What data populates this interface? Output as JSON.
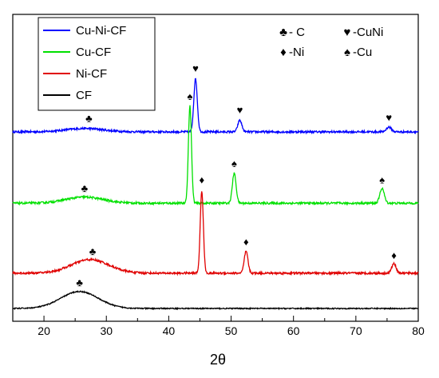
{
  "chart_data": {
    "type": "line",
    "title": "",
    "xlabel": "2θ",
    "ylabel": "",
    "xlim": [
      15,
      80
    ],
    "xticks": [
      "20",
      "30",
      "40",
      "50",
      "60",
      "70",
      "80"
    ],
    "grid": false,
    "legend_position": "top-left",
    "series": [
      {
        "name": "Cu-Ni-CF",
        "color": "#0000ff",
        "offset": 2.6,
        "noise": 0.015,
        "broad": [
          {
            "x": 26.5,
            "h": 0.05,
            "w": 3.0
          }
        ],
        "peaks": [
          {
            "x": 44.3,
            "h": 0.78,
            "w": 0.28
          },
          {
            "x": 51.4,
            "h": 0.17,
            "w": 0.32
          },
          {
            "x": 75.3,
            "h": 0.07,
            "w": 0.4
          }
        ]
      },
      {
        "name": "Cu-CF",
        "color": "#00e000",
        "offset": 1.55,
        "noise": 0.015,
        "broad": [
          {
            "x": 26.5,
            "h": 0.09,
            "w": 3.0
          }
        ],
        "peaks": [
          {
            "x": 43.4,
            "h": 1.43,
            "w": 0.25
          },
          {
            "x": 50.5,
            "h": 0.44,
            "w": 0.3
          },
          {
            "x": 74.2,
            "h": 0.22,
            "w": 0.35
          }
        ]
      },
      {
        "name": "Ni-CF",
        "color": "#e00000",
        "offset": 0.52,
        "noise": 0.015,
        "broad": [
          {
            "x": 27.4,
            "h": 0.2,
            "w": 3.0
          }
        ],
        "peaks": [
          {
            "x": 45.3,
            "h": 1.21,
            "w": 0.25
          },
          {
            "x": 52.4,
            "h": 0.32,
            "w": 0.3
          },
          {
            "x": 76.1,
            "h": 0.14,
            "w": 0.35
          }
        ]
      },
      {
        "name": "CF",
        "color": "#000000",
        "offset": 0.0,
        "noise": 0.008,
        "broad": [
          {
            "x": 25.7,
            "h": 0.25,
            "w": 3.0
          }
        ],
        "peaks": []
      }
    ],
    "annotations": [
      {
        "x": 27.2,
        "y": 2.75,
        "symbol": "♣"
      },
      {
        "x": 44.3,
        "y": 3.48,
        "symbol": "♥"
      },
      {
        "x": 51.4,
        "y": 2.87,
        "symbol": "♥"
      },
      {
        "x": 75.3,
        "y": 2.76,
        "symbol": "♥"
      },
      {
        "x": 26.5,
        "y": 1.72,
        "symbol": "♣"
      },
      {
        "x": 43.4,
        "y": 3.07,
        "symbol": "♠"
      },
      {
        "x": 50.5,
        "y": 2.08,
        "symbol": "♠"
      },
      {
        "x": 74.2,
        "y": 1.84,
        "symbol": "♠"
      },
      {
        "x": 27.8,
        "y": 0.79,
        "symbol": "♣"
      },
      {
        "x": 45.3,
        "y": 1.84,
        "symbol": "♦"
      },
      {
        "x": 52.4,
        "y": 0.93,
        "symbol": "♦"
      },
      {
        "x": 76.1,
        "y": 0.73,
        "symbol": "♦"
      },
      {
        "x": 25.7,
        "y": 0.33,
        "symbol": "♣"
      }
    ],
    "phase_key": [
      {
        "symbol": "♣",
        "label": "- C"
      },
      {
        "symbol": "♥",
        "label": "-CuNi"
      },
      {
        "symbol": "♦",
        "label": "-Ni"
      },
      {
        "symbol": "♠",
        "label": "-Cu"
      }
    ]
  }
}
